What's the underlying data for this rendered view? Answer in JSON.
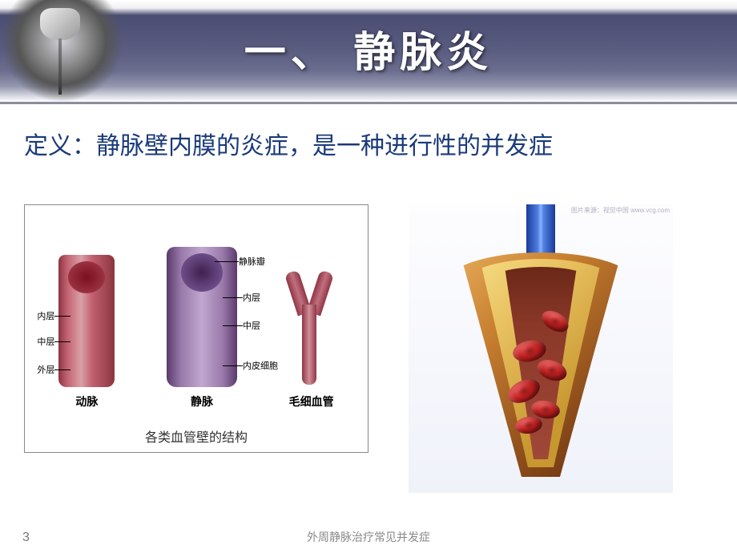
{
  "header": {
    "title": "一、 静脉炎"
  },
  "definition": "定义：静脉壁内膜的炎症，是一种进行性的并发症",
  "left_diagram": {
    "caption": "各类血管壁的结构",
    "artery_label": "动脉",
    "vein_label": "静脉",
    "capillary_label": "毛细血管",
    "layer_labels": {
      "valve": "静脉瓣",
      "inner_right": "静脉瓣",
      "inner": "内层",
      "middle": "中层",
      "endo": "内皮细胞",
      "outer": "外层"
    }
  },
  "right_diagram": {
    "watermark": "图片来源：视觉中国 www.vcg.com"
  },
  "footer": {
    "page_number": "3",
    "text": "外周静脉治疗常见并发症"
  },
  "colors": {
    "header_band": "#5a5d80",
    "title_text": "#ffffff",
    "definition_text": "#1a3a7a",
    "artery": "#a84050",
    "vein": "#8060a0",
    "capillary": "#c07080",
    "rbc": "#c02020",
    "funnel_outer": "#c88030",
    "vessel_top": "#5080e0"
  }
}
